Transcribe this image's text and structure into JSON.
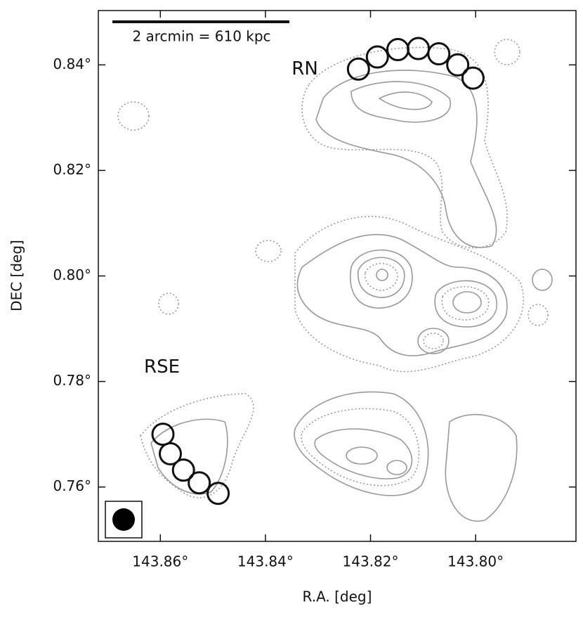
{
  "chart_data": {
    "type": "scatter",
    "xlabel": "R.A. [deg]",
    "ylabel": "DEC [deg]",
    "annotation": "2 arcmin = 610 kpc",
    "xlim": [
      143.8718,
      143.7809
    ],
    "ylim": [
      0.7497,
      0.8503
    ],
    "xticks": [
      {
        "value": 143.86,
        "label": "143.86°"
      },
      {
        "value": 143.84,
        "label": "143.84°"
      },
      {
        "value": 143.82,
        "label": "143.82°"
      },
      {
        "value": 143.8,
        "label": "143.80°"
      }
    ],
    "yticks": [
      {
        "value": 0.76,
        "label": "0.76°"
      },
      {
        "value": 0.78,
        "label": "0.78°"
      },
      {
        "value": 0.8,
        "label": "0.80°"
      },
      {
        "value": 0.82,
        "label": "0.82°"
      },
      {
        "value": 0.84,
        "label": "0.84°"
      }
    ],
    "series": [
      {
        "name": "RN",
        "color": "#111111",
        "x": [
          143.8223,
          143.8187,
          143.8148,
          143.8109,
          143.807,
          143.8034,
          143.8005
        ],
        "values": [
          0.8392,
          0.8415,
          0.8429,
          0.8431,
          0.8421,
          0.84,
          0.8375
        ]
      },
      {
        "name": "RSE",
        "color": "#111111",
        "x": [
          143.8595,
          143.8581,
          143.8556,
          143.8526,
          143.849
        ],
        "values": [
          0.77,
          0.7663,
          0.7632,
          0.7608,
          0.7588
        ]
      }
    ]
  }
}
